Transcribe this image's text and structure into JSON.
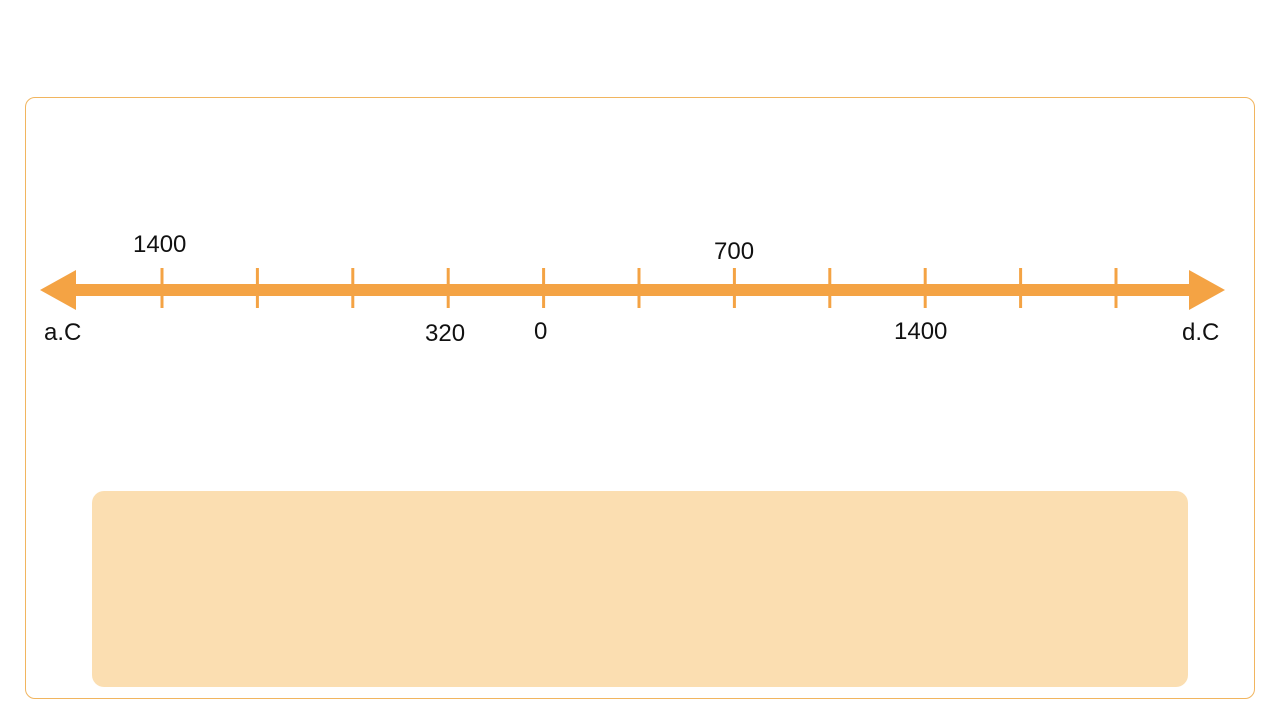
{
  "timeline": {
    "left_end_label": "a.C",
    "right_end_label": "d.C",
    "color": "#f4a344",
    "tick_count": 11,
    "labels_above": [
      {
        "text": "1400",
        "tick": 0
      },
      {
        "text": "700",
        "tick": 6
      }
    ],
    "labels_below": [
      {
        "text": "320",
        "tick": 3
      },
      {
        "text": "0",
        "tick": 4
      },
      {
        "text": "1400",
        "tick": 8
      }
    ]
  },
  "colors": {
    "frame_border": "#f1b55f",
    "answer_box": "#fbdeb1",
    "text": "#111111"
  }
}
